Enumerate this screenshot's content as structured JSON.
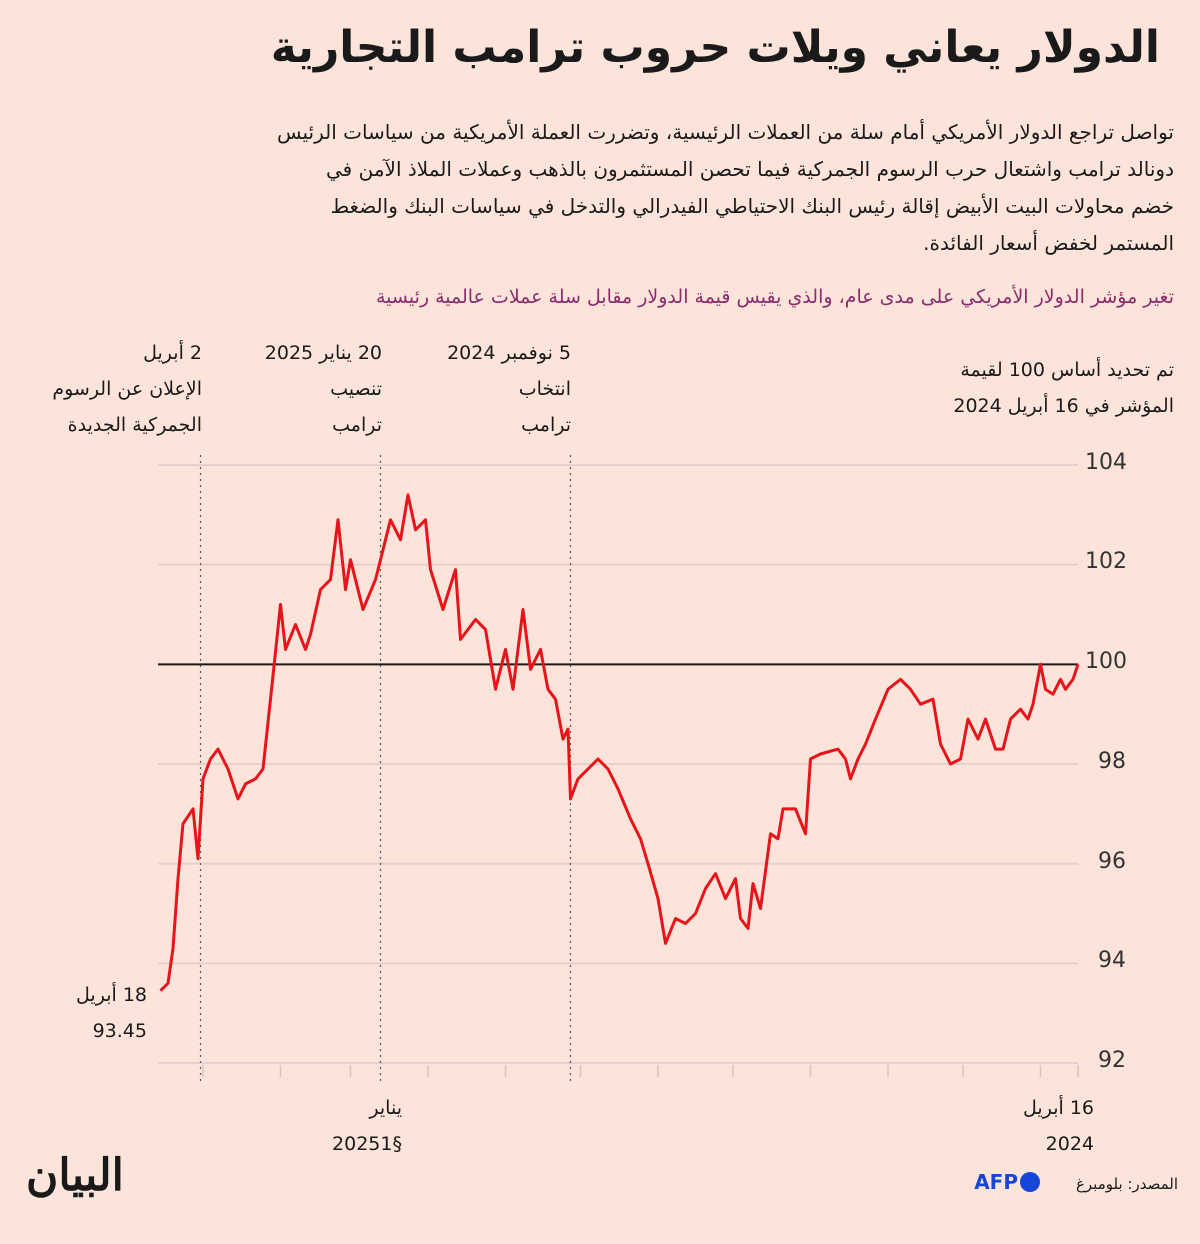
{
  "title": "الدولار يعاني ويلات حروب ترامب التجارية",
  "intro_lines": [
    "تواصل تراجع الدولار الأمريكي أمام سلة من العملات الرئيسية، وتضررت العملة الأمريكية من سياسات الرئيس",
    "دونالد ترامب واشتعال حرب الرسوم الجمركية فيما تحصن المستثمرون بالذهب وعملات الملاذ الآمن في",
    "خضم محاولات البيت الأبيض إقالة رئيس البنك الاحتياطي الفيدرالي والتدخل في سياسات البنك والضغط",
    "المستمر لخفض أسعار الفائدة."
  ],
  "subtitle": "تغير مؤشر الدولار الأمريكي على مدى عام، والذي يقيس قيمة الدولار مقابل سلة عملات عالمية رئيسية",
  "colors": {
    "background": "#fde4da",
    "line": "#e8141b",
    "baseline": "#1a1a1a",
    "grid": "#e6cfcf",
    "subtitle": "#8a2b6d",
    "afp": "#1546d8"
  },
  "source": "المصدر: بلومبرغ",
  "afp_logo": "AFP",
  "publisher_logo": "البيان",
  "chart_data": {
    "type": "line",
    "title": "",
    "xlabel": "",
    "ylabel": "",
    "x_direction": "right-to-left",
    "ylim": [
      92,
      104
    ],
    "yticks": [
      "104",
      "102",
      "100",
      "98",
      "96",
      "94",
      "92"
    ],
    "baseline_value": 100,
    "grid": true,
    "base_note": [
      "تم تحديد أساس 100 لقيمة",
      "المؤشر في 16 أبريل 2024"
    ],
    "x_labels": [
      {
        "date": "2024-04-16",
        "lines": [
          "16 أبريل",
          "2024"
        ]
      },
      {
        "date": "2025-01-01",
        "lines": [
          "يناير",
          "§20251"
        ]
      }
    ],
    "events": [
      {
        "date": "2024-11-05",
        "lines": [
          "5 نوفمبر 2024",
          "انتخاب",
          "ترامب"
        ]
      },
      {
        "date": "2025-01-20",
        "lines": [
          "20 يناير 2025",
          "تنصيب",
          "ترامب"
        ]
      },
      {
        "date": "2025-04-02",
        "lines": [
          "2 أبريل",
          "الإعلان عن الرسوم",
          "الجمركية الجديدة"
        ]
      }
    ],
    "end_label": {
      "date": "2025-04-18",
      "lines": [
        "18 أبريل",
        "93.45"
      ]
    },
    "series": [
      {
        "points": [
          [
            "2024-04-16",
            100.0
          ],
          [
            "2024-04-18",
            99.7
          ],
          [
            "2024-04-21",
            99.5
          ],
          [
            "2024-04-23",
            99.7
          ],
          [
            "2024-04-26",
            99.4
          ],
          [
            "2024-04-29",
            99.5
          ],
          [
            "2024-05-01",
            100.0
          ],
          [
            "2024-05-04",
            99.2
          ],
          [
            "2024-05-06",
            98.9
          ],
          [
            "2024-05-09",
            99.1
          ],
          [
            "2024-05-13",
            98.9
          ],
          [
            "2024-05-16",
            98.3
          ],
          [
            "2024-05-19",
            98.3
          ],
          [
            "2024-05-23",
            98.9
          ],
          [
            "2024-05-26",
            98.5
          ],
          [
            "2024-05-30",
            98.9
          ],
          [
            "2024-06-02",
            98.1
          ],
          [
            "2024-06-06",
            98.0
          ],
          [
            "2024-06-10",
            98.4
          ],
          [
            "2024-06-13",
            99.3
          ],
          [
            "2024-06-18",
            99.2
          ],
          [
            "2024-06-22",
            99.5
          ],
          [
            "2024-06-26",
            99.7
          ],
          [
            "2024-07-01",
            99.5
          ],
          [
            "2024-07-06",
            98.9
          ],
          [
            "2024-07-10",
            98.4
          ],
          [
            "2024-07-13",
            98.1
          ],
          [
            "2024-07-16",
            97.7
          ],
          [
            "2024-07-18",
            98.1
          ],
          [
            "2024-07-21",
            98.3
          ],
          [
            "2024-07-28",
            98.2
          ],
          [
            "2024-08-01",
            98.1
          ],
          [
            "2024-08-03",
            96.6
          ],
          [
            "2024-08-07",
            97.1
          ],
          [
            "2024-08-12",
            97.1
          ],
          [
            "2024-08-14",
            96.5
          ],
          [
            "2024-08-17",
            96.6
          ],
          [
            "2024-08-21",
            95.1
          ],
          [
            "2024-08-24",
            95.6
          ],
          [
            "2024-08-26",
            94.7
          ],
          [
            "2024-08-29",
            94.9
          ],
          [
            "2024-08-31",
            95.7
          ],
          [
            "2024-09-04",
            95.3
          ],
          [
            "2024-09-08",
            95.8
          ],
          [
            "2024-09-12",
            95.5
          ],
          [
            "2024-09-16",
            95.0
          ],
          [
            "2024-09-20",
            94.8
          ],
          [
            "2024-09-24",
            94.9
          ],
          [
            "2024-09-28",
            94.4
          ],
          [
            "2024-10-01",
            95.3
          ],
          [
            "2024-10-05",
            96.0
          ],
          [
            "2024-10-08",
            96.5
          ],
          [
            "2024-10-12",
            96.9
          ],
          [
            "2024-10-17",
            97.5
          ],
          [
            "2024-10-21",
            97.9
          ],
          [
            "2024-10-25",
            98.1
          ],
          [
            "2024-10-29",
            97.9
          ],
          [
            "2024-11-02",
            97.7
          ],
          [
            "2024-11-05",
            97.3
          ],
          [
            "2024-11-06",
            98.7
          ],
          [
            "2024-11-08",
            98.5
          ],
          [
            "2024-11-11",
            99.3
          ],
          [
            "2024-11-14",
            99.5
          ],
          [
            "2024-11-17",
            100.3
          ],
          [
            "2024-11-21",
            99.9
          ],
          [
            "2024-11-24",
            101.1
          ],
          [
            "2024-11-28",
            99.5
          ],
          [
            "2024-12-01",
            100.3
          ],
          [
            "2024-12-05",
            99.5
          ],
          [
            "2024-12-09",
            100.7
          ],
          [
            "2024-12-13",
            100.9
          ],
          [
            "2024-12-19",
            100.5
          ],
          [
            "2024-12-21",
            101.9
          ],
          [
            "2024-12-26",
            101.1
          ],
          [
            "2024-12-31",
            101.9
          ],
          [
            "2025-01-02",
            102.9
          ],
          [
            "2025-01-06",
            102.7
          ],
          [
            "2025-01-09",
            103.4
          ],
          [
            "2025-01-12",
            102.5
          ],
          [
            "2025-01-16",
            102.9
          ],
          [
            "2025-01-19",
            102.3
          ],
          [
            "2025-01-22",
            101.7
          ],
          [
            "2025-01-27",
            101.1
          ],
          [
            "2025-02-01",
            102.1
          ],
          [
            "2025-02-03",
            101.5
          ],
          [
            "2025-02-06",
            102.9
          ],
          [
            "2025-02-09",
            101.7
          ],
          [
            "2025-02-13",
            101.5
          ],
          [
            "2025-02-17",
            100.6
          ],
          [
            "2025-02-19",
            100.3
          ],
          [
            "2025-02-23",
            100.8
          ],
          [
            "2025-02-27",
            100.3
          ],
          [
            "2025-03-01",
            101.2
          ],
          [
            "2025-03-05",
            99.3
          ],
          [
            "2025-03-08",
            97.9
          ],
          [
            "2025-03-11",
            97.7
          ],
          [
            "2025-03-15",
            97.6
          ],
          [
            "2025-03-18",
            97.3
          ],
          [
            "2025-03-22",
            97.9
          ],
          [
            "2025-03-26",
            98.3
          ],
          [
            "2025-03-29",
            98.1
          ],
          [
            "2025-04-01",
            97.7
          ],
          [
            "2025-04-03",
            96.1
          ],
          [
            "2025-04-05",
            97.1
          ],
          [
            "2025-04-09",
            96.8
          ],
          [
            "2025-04-11",
            95.7
          ],
          [
            "2025-04-13",
            94.3
          ],
          [
            "2025-04-15",
            93.6
          ],
          [
            "2025-04-18",
            93.45
          ]
        ]
      }
    ]
  }
}
